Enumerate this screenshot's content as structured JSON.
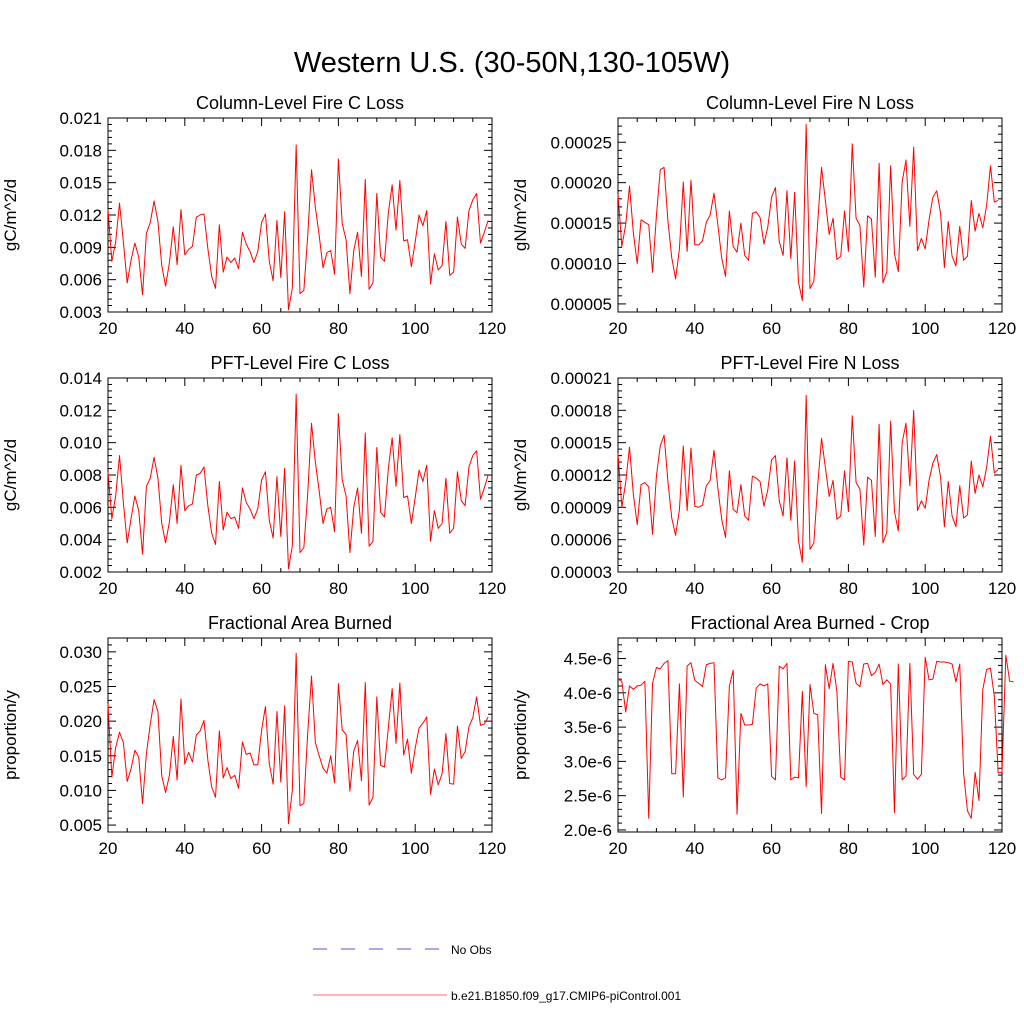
{
  "figure_title": "Western U.S. (30-50N,130-105W)",
  "legend": [
    {
      "label": "No Obs",
      "color": "#5555cc",
      "dash": true
    },
    {
      "label": "b.e21.B1850.f09_g17.CMIP6-piControl.001",
      "color": "#ff6b6b",
      "dash": false
    }
  ],
  "colors": {
    "series": "#ff0000",
    "axis": "#000000"
  },
  "chart_data": [
    {
      "type": "line",
      "title": "Column-Level Fire C Loss",
      "xlabel": "",
      "ylabel": "gC/m^2/d",
      "xlim": [
        20,
        120
      ],
      "ylim": [
        0.003,
        0.021
      ],
      "xticks": [
        "20",
        "40",
        "60",
        "80",
        "100",
        "120"
      ],
      "xtick_values": [
        20,
        40,
        60,
        80,
        100,
        120
      ],
      "yticks": [
        "0.003",
        "0.006",
        "0.009",
        "0.012",
        "0.015",
        "0.018",
        "0.021"
      ],
      "ytick_values": [
        0.003,
        0.006,
        0.009,
        0.012,
        0.015,
        0.018,
        0.021
      ],
      "x_start": 20,
      "series": [
        {
          "values": [
            0.0125,
            0.0077,
            0.0095,
            0.0131,
            0.0095,
            0.0057,
            0.0078,
            0.0094,
            0.0081,
            0.0046,
            0.0103,
            0.0113,
            0.0133,
            0.0114,
            0.0073,
            0.0054,
            0.0076,
            0.0109,
            0.0074,
            0.0125,
            0.0083,
            0.0088,
            0.0091,
            0.0118,
            0.012,
            0.0121,
            0.0089,
            0.0063,
            0.0052,
            0.0111,
            0.0067,
            0.0081,
            0.0076,
            0.008,
            0.007,
            0.0104,
            0.0093,
            0.0086,
            0.0076,
            0.0086,
            0.0113,
            0.0121,
            0.0077,
            0.0059,
            0.0115,
            0.0062,
            0.0123,
            0.0032,
            0.0052,
            0.0185,
            0.0047,
            0.005,
            0.01,
            0.0162,
            0.0127,
            0.0101,
            0.0071,
            0.0085,
            0.0087,
            0.0065,
            0.0172,
            0.0112,
            0.0097,
            0.0047,
            0.0087,
            0.0104,
            0.0063,
            0.0153,
            0.0051,
            0.0057,
            0.014,
            0.0081,
            0.0077,
            0.0122,
            0.0148,
            0.0106,
            0.0152,
            0.0096,
            0.0097,
            0.0072,
            0.0095,
            0.012,
            0.011,
            0.0124,
            0.0056,
            0.0084,
            0.0069,
            0.0073,
            0.0114,
            0.0064,
            0.0067,
            0.0118,
            0.0093,
            0.0089,
            0.0124,
            0.0134,
            0.014,
            0.0094,
            0.0104,
            0.0115
          ]
        }
      ]
    },
    {
      "type": "line",
      "title": "Column-Level Fire N Loss",
      "xlabel": "",
      "ylabel": "gN/m^2/d",
      "xlim": [
        20,
        120
      ],
      "ylim": [
        4e-05,
        0.00028
      ],
      "xticks": [
        "20",
        "40",
        "60",
        "80",
        "100",
        "120"
      ],
      "xtick_values": [
        20,
        40,
        60,
        80,
        100,
        120
      ],
      "yticks": [
        "0.00005",
        "0.00010",
        "0.00015",
        "0.00020",
        "0.00025"
      ],
      "ytick_values": [
        5e-05,
        0.0001,
        0.00015,
        0.0002,
        0.00025
      ],
      "x_start": 20,
      "series": [
        {
          "values": [
            0.000186,
            0.000121,
            0.000148,
            0.000196,
            0.000138,
            0.0001,
            0.000154,
            0.000151,
            0.000148,
            8.9e-05,
            0.000159,
            0.000216,
            0.000219,
            0.000153,
            0.000107,
            8.1e-05,
            0.000118,
            0.000201,
            0.000115,
            0.000203,
            0.000123,
            0.000123,
            0.000128,
            0.000151,
            0.00016,
            0.000187,
            0.000148,
            0.000107,
            8.4e-05,
            0.000165,
            0.000121,
            0.000114,
            0.00015,
            0.00011,
            0.000104,
            0.000162,
            0.000164,
            0.000157,
            0.000124,
            0.000145,
            0.000182,
            0.000194,
            0.000127,
            0.00011,
            0.00019,
            0.000106,
            0.000188,
            7.7e-05,
            5.4e-05,
            0.000272,
            6.9e-05,
            7.8e-05,
            0.00015,
            0.000219,
            0.000178,
            0.000136,
            0.000156,
            0.000105,
            0.000109,
            0.000165,
            0.000115,
            0.000248,
            0.000156,
            0.000147,
            7.1e-05,
            0.000159,
            0.000155,
            8.3e-05,
            0.000224,
            7.6e-05,
            9e-05,
            0.000221,
            0.000112,
            9e-05,
            0.000201,
            0.000228,
            0.000146,
            0.000244,
            0.000116,
            0.000131,
            0.000118,
            0.000154,
            0.000182,
            0.00019,
            0.000162,
            9.5e-05,
            0.000152,
            0.000109,
            9.7e-05,
            0.000146,
            0.000104,
            0.000109,
            0.000178,
            0.00014,
            0.000162,
            0.000144,
            0.000172,
            0.000221,
            0.000176,
            0.000178
          ]
        }
      ]
    },
    {
      "type": "line",
      "title": "PFT-Level Fire C Loss",
      "xlabel": "",
      "ylabel": "gC/m^2/d",
      "xlim": [
        20,
        120
      ],
      "ylim": [
        0.002,
        0.014
      ],
      "xticks": [
        "20",
        "40",
        "60",
        "80",
        "100",
        "120"
      ],
      "xtick_values": [
        20,
        40,
        60,
        80,
        100,
        120
      ],
      "yticks": [
        "0.002",
        "0.004",
        "0.006",
        "0.008",
        "0.010",
        "0.012",
        "0.014"
      ],
      "ytick_values": [
        0.002,
        0.004,
        0.006,
        0.008,
        0.01,
        0.012,
        0.014
      ],
      "x_start": 20,
      "series": [
        {
          "values": [
            0.0082,
            0.0053,
            0.0067,
            0.0092,
            0.0063,
            0.0038,
            0.0053,
            0.0067,
            0.0058,
            0.0031,
            0.0073,
            0.0078,
            0.0091,
            0.0078,
            0.005,
            0.0038,
            0.0051,
            0.0074,
            0.005,
            0.0086,
            0.0058,
            0.0061,
            0.0062,
            0.008,
            0.0081,
            0.0085,
            0.0061,
            0.0044,
            0.0037,
            0.0076,
            0.0046,
            0.0057,
            0.0053,
            0.0054,
            0.0047,
            0.0072,
            0.0063,
            0.0059,
            0.0053,
            0.0059,
            0.0077,
            0.0082,
            0.0052,
            0.0041,
            0.0079,
            0.0042,
            0.0084,
            0.0022,
            0.0036,
            0.013,
            0.0032,
            0.0035,
            0.0068,
            0.0112,
            0.0088,
            0.007,
            0.005,
            0.0059,
            0.006,
            0.0045,
            0.0118,
            0.0077,
            0.0067,
            0.0032,
            0.006,
            0.0072,
            0.0044,
            0.0106,
            0.0036,
            0.0039,
            0.0097,
            0.0057,
            0.0054,
            0.0084,
            0.0103,
            0.0073,
            0.0105,
            0.0066,
            0.0067,
            0.005,
            0.0066,
            0.0083,
            0.0076,
            0.0086,
            0.0039,
            0.0058,
            0.0047,
            0.005,
            0.0078,
            0.0044,
            0.0047,
            0.0082,
            0.0064,
            0.0061,
            0.0085,
            0.0092,
            0.0095,
            0.0065,
            0.0072,
            0.008
          ]
        }
      ]
    },
    {
      "type": "line",
      "title": "PFT-Level Fire N Loss",
      "xlabel": "",
      "ylabel": "gN/m^2/d",
      "xlim": [
        20,
        120
      ],
      "ylim": [
        3e-05,
        0.00021
      ],
      "xticks": [
        "20",
        "40",
        "60",
        "80",
        "100",
        "120"
      ],
      "xtick_values": [
        20,
        40,
        60,
        80,
        100,
        120
      ],
      "yticks": [
        "0.00003",
        "0.00006",
        "0.00009",
        "0.00012",
        "0.00015",
        "0.00018",
        "0.00021"
      ],
      "ytick_values": [
        3e-05,
        6e-05,
        9e-05,
        0.00012,
        0.00015,
        0.00018,
        0.00021
      ],
      "x_start": 20,
      "series": [
        {
          "values": [
            0.00014,
            9e-05,
            0.000113,
            0.000146,
            0.000102,
            7.4e-05,
            0.000111,
            0.000113,
            0.000109,
            6.5e-05,
            0.000119,
            0.000147,
            0.000157,
            0.000114,
            8e-05,
            6.4e-05,
            8.8e-05,
            0.000147,
            8.7e-05,
            0.000145,
            9.1e-05,
            9e-05,
            9.2e-05,
            0.00011,
            0.000115,
            0.000143,
            0.000108,
            7.9e-05,
            6.2e-05,
            0.000124,
            8.8e-05,
            8.5e-05,
            0.000111,
            8.2e-05,
            7.8e-05,
            0.000119,
            0.000117,
            0.000114,
            9.1e-05,
            0.000106,
            0.000134,
            0.000138,
            9.6e-05,
            8.2e-05,
            0.000136,
            7.8e-05,
            0.000133,
            5.9e-05,
            3.9e-05,
            0.000194,
            5.1e-05,
            5.7e-05,
            0.00011,
            0.000154,
            0.000127,
            0.0001,
            0.000115,
            7.9e-05,
            8.2e-05,
            0.000124,
            8.6e-05,
            0.000175,
            0.000113,
            0.000107,
            5.5e-05,
            0.000118,
            0.000115,
            6.3e-05,
            0.000167,
            5.7e-05,
            6.7e-05,
            0.00017,
            8.6e-05,
            6.8e-05,
            0.00015,
            0.000168,
            0.00011,
            0.00018,
            8.7e-05,
            9.6e-05,
            8.9e-05,
            0.000115,
            0.000131,
            0.000139,
            0.000118,
            7.2e-05,
            0.000114,
            8.2e-05,
            7.2e-05,
            0.00011,
            8e-05,
            8.3e-05,
            0.000133,
            0.000103,
            0.00012,
            0.000109,
            0.000127,
            0.000156,
            0.000122,
            0.000125
          ]
        }
      ]
    },
    {
      "type": "line",
      "title": "Fractional Area Burned",
      "xlabel": "",
      "ylabel": "proportion/y",
      "xlim": [
        20,
        120
      ],
      "ylim": [
        0.004,
        0.032
      ],
      "xticks": [
        "20",
        "40",
        "60",
        "80",
        "100",
        "120"
      ],
      "xtick_values": [
        20,
        40,
        60,
        80,
        100,
        120
      ],
      "yticks": [
        "0.005",
        "0.010",
        "0.015",
        "0.020",
        "0.025",
        "0.030"
      ],
      "ytick_values": [
        0.005,
        0.01,
        0.015,
        0.02,
        0.025,
        0.03
      ],
      "x_start": 20,
      "series": [
        {
          "values": [
            0.0225,
            0.0119,
            0.0162,
            0.0184,
            0.0169,
            0.0113,
            0.0131,
            0.0158,
            0.0148,
            0.0081,
            0.0153,
            0.0195,
            0.0231,
            0.0214,
            0.0121,
            0.0097,
            0.0122,
            0.0178,
            0.0115,
            0.0232,
            0.0138,
            0.0155,
            0.0141,
            0.018,
            0.0186,
            0.0201,
            0.0144,
            0.0105,
            0.009,
            0.0186,
            0.0118,
            0.0133,
            0.0117,
            0.0122,
            0.0103,
            0.017,
            0.0152,
            0.0154,
            0.0137,
            0.0137,
            0.0187,
            0.0221,
            0.0139,
            0.0109,
            0.0214,
            0.0112,
            0.0222,
            0.0052,
            0.01,
            0.0298,
            0.0078,
            0.0081,
            0.0182,
            0.0265,
            0.0169,
            0.015,
            0.0132,
            0.0125,
            0.015,
            0.0111,
            0.0254,
            0.0187,
            0.0181,
            0.0099,
            0.0157,
            0.0172,
            0.0114,
            0.0256,
            0.0079,
            0.009,
            0.0235,
            0.0136,
            0.0134,
            0.019,
            0.0247,
            0.0168,
            0.0255,
            0.0151,
            0.0174,
            0.0125,
            0.0161,
            0.019,
            0.0197,
            0.0206,
            0.0094,
            0.0131,
            0.0108,
            0.0124,
            0.0182,
            0.011,
            0.0109,
            0.0193,
            0.0146,
            0.0156,
            0.0192,
            0.0205,
            0.0235,
            0.0194,
            0.0196,
            0.0206
          ]
        }
      ]
    },
    {
      "type": "line",
      "title": "Fractional Area Burned - Crop",
      "xlabel": "",
      "ylabel": "proportion/y",
      "xlim": [
        20,
        120
      ],
      "ylim": [
        1.97e-06,
        4.8e-06
      ],
      "xticks": [
        "20",
        "40",
        "60",
        "80",
        "100",
        "120"
      ],
      "xtick_values": [
        20,
        40,
        60,
        80,
        100,
        120
      ],
      "yticks": [
        "2.0e-6",
        "2.5e-6",
        "3.0e-6",
        "3.5e-6",
        "4.0e-6",
        "4.5e-6"
      ],
      "ytick_values": [
        2e-06,
        2.5e-06,
        3e-06,
        3.5e-06,
        4e-06,
        4.5e-06
      ],
      "x_start": 20,
      "series": [
        {
          "values": [
            4.2e-06,
            4.17e-06,
            3.72e-06,
            4.1e-06,
            4.05e-06,
            4.1e-06,
            4.11e-06,
            4.17e-06,
            2.17e-06,
            4.14e-06,
            4.37e-06,
            4.35e-06,
            4.43e-06,
            4.47e-06,
            2.82e-06,
            2.82e-06,
            4.13e-06,
            2.48e-06,
            4.39e-06,
            4.44e-06,
            4.18e-06,
            4.14e-06,
            4.09e-06,
            4.41e-06,
            4.43e-06,
            4.44e-06,
            2.76e-06,
            2.73e-06,
            2.76e-06,
            4.1e-06,
            4.33e-06,
            2.23e-06,
            3.7e-06,
            3.53e-06,
            3.53e-06,
            3.54e-06,
            4.07e-06,
            4.13e-06,
            4.1e-06,
            4.13e-06,
            2.78e-06,
            2.73e-06,
            4.39e-06,
            4.35e-06,
            4.43e-06,
            2.73e-06,
            2.77e-06,
            2.76e-06,
            4.02e-06,
            2.63e-06,
            4.12e-06,
            3.7e-06,
            3.68e-06,
            2.24e-06,
            4.41e-06,
            4.06e-06,
            4.43e-06,
            4.02e-06,
            2.77e-06,
            2.73e-06,
            4.46e-06,
            4.45e-06,
            4.14e-06,
            4.09e-06,
            4.42e-06,
            4.43e-06,
            4.25e-06,
            4.3e-06,
            4.42e-06,
            4.12e-06,
            4.19e-06,
            4.13e-06,
            2.25e-06,
            4.42e-06,
            2.73e-06,
            2.79e-06,
            4.43e-06,
            2.81e-06,
            2.74e-06,
            2.81e-06,
            4.52e-06,
            4.19e-06,
            4.2e-06,
            4.46e-06,
            4.45e-06,
            4.45e-06,
            4.44e-06,
            4.42e-06,
            4.16e-06,
            4.42e-06,
            2.83e-06,
            2.28e-06,
            2.17e-06,
            2.84e-06,
            2.43e-06,
            4.05e-06,
            4.34e-06,
            4.36e-06,
            3.95e-06,
            2.83e-06,
            2.84e-06,
            4.55e-06,
            4.17e-06,
            4.16e-06
          ]
        }
      ]
    }
  ]
}
